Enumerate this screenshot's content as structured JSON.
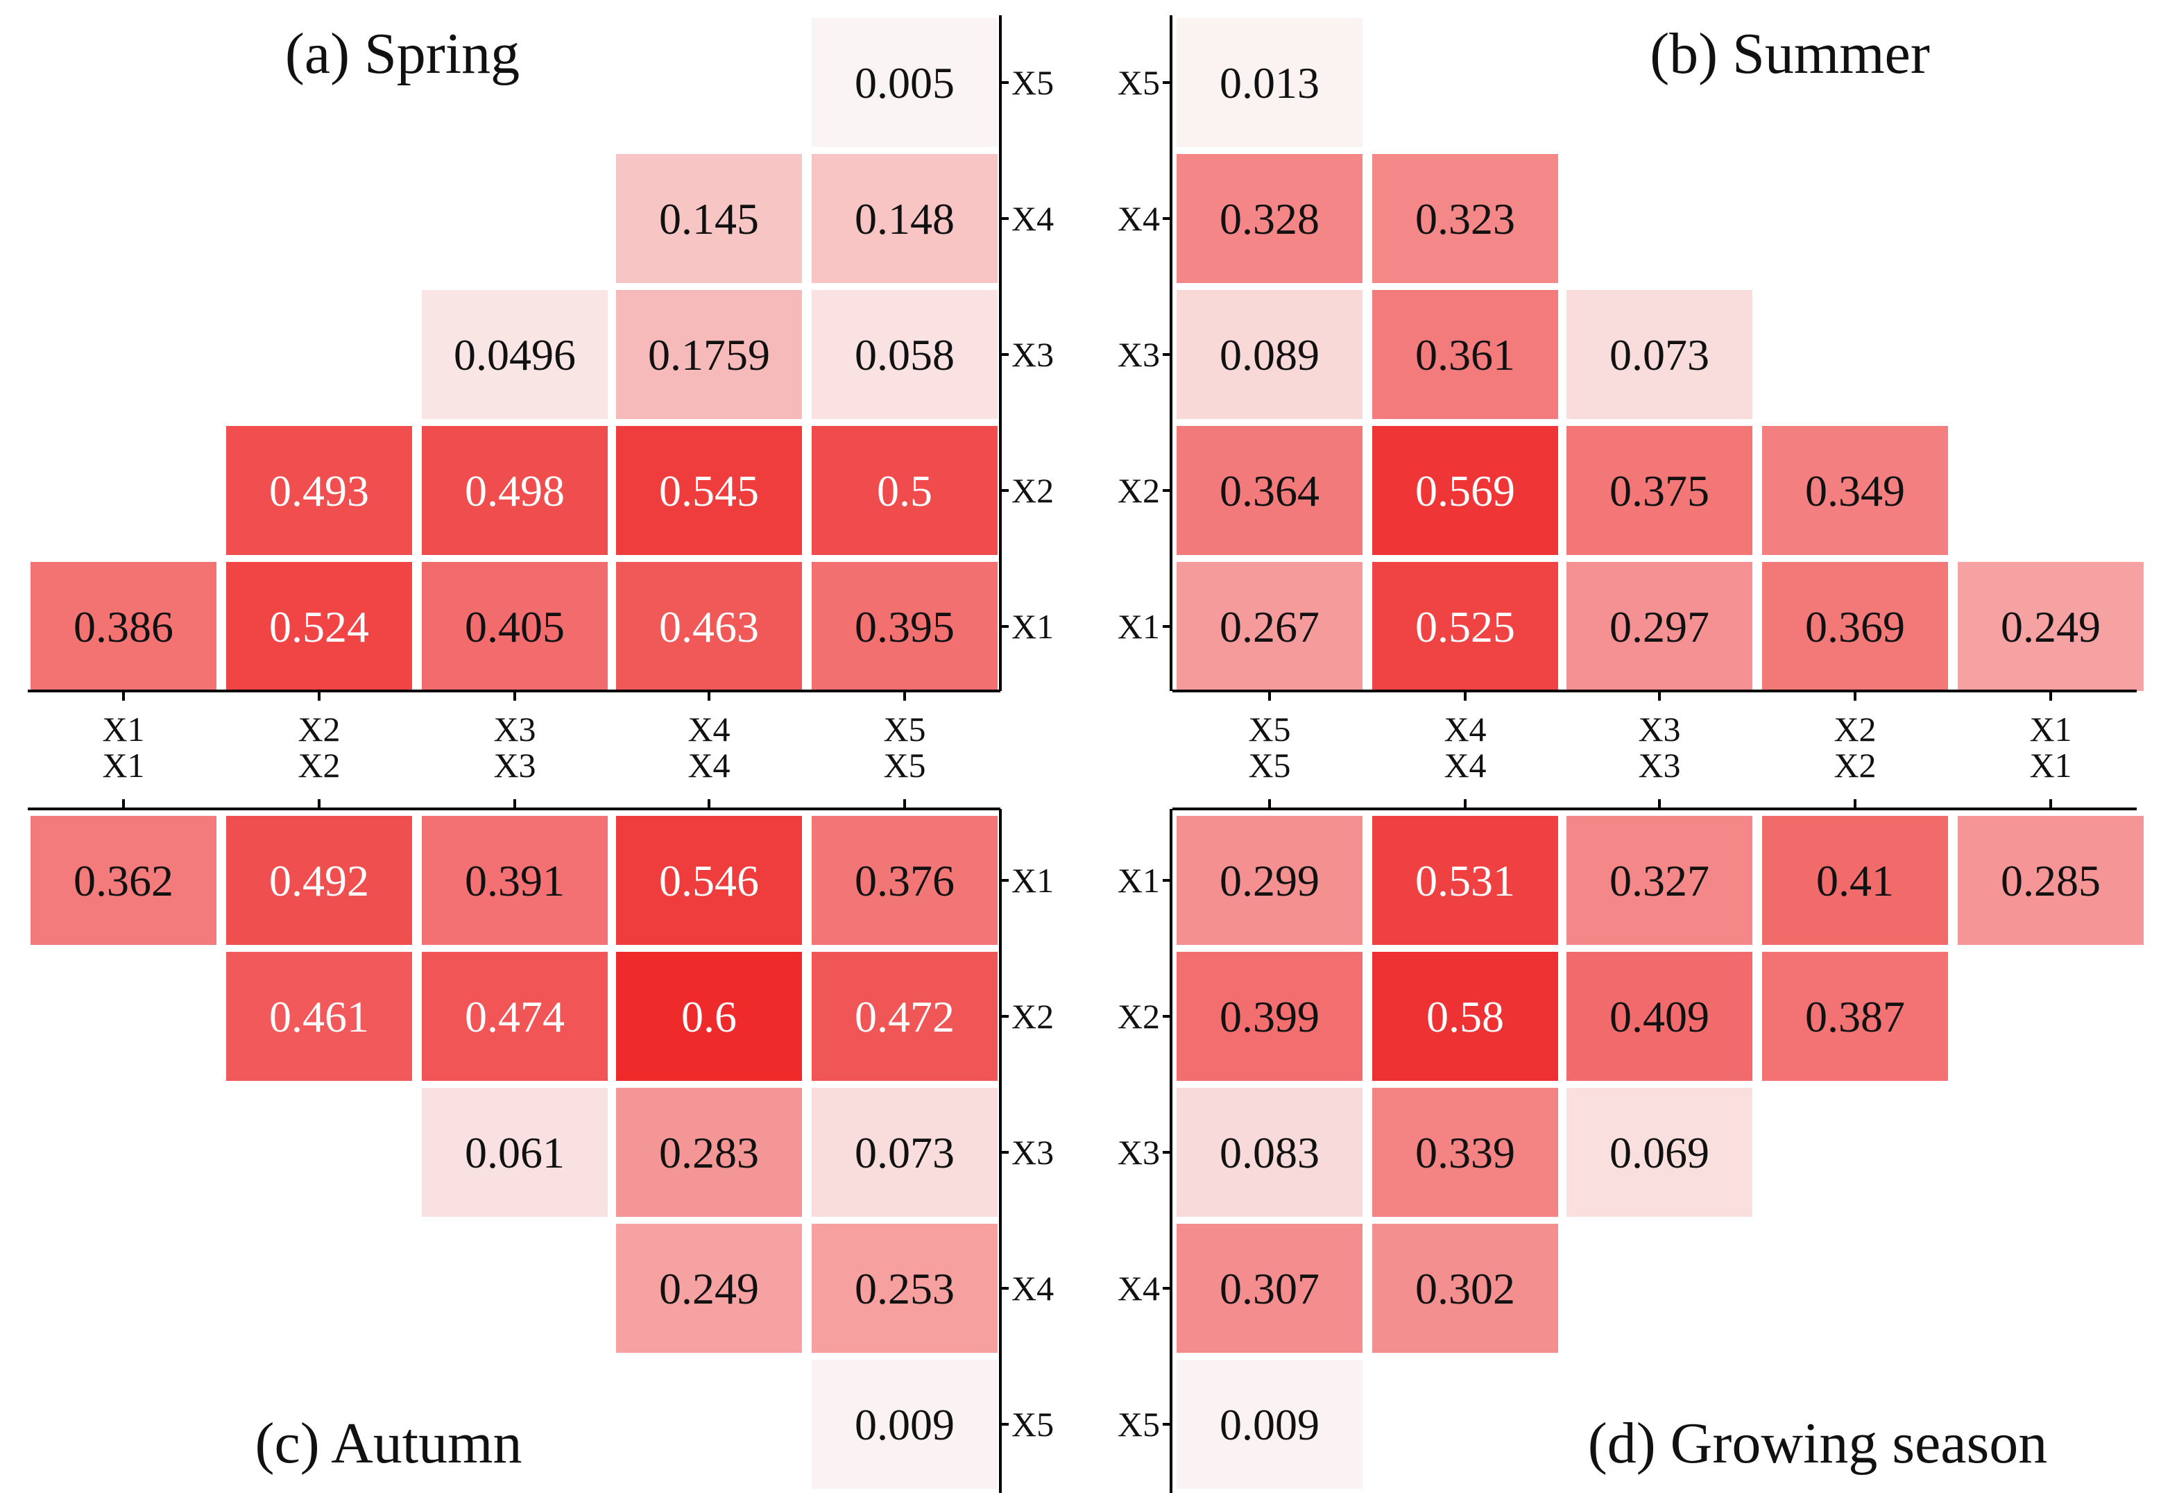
{
  "chart_data": {
    "type": "heatmap",
    "colors": {
      "low": "#fbf6f6",
      "high": "#ee2a2b",
      "text_dark": "#111111",
      "text_light": "#ffffff",
      "axis": "#000000"
    },
    "variables": [
      "X1",
      "X2",
      "X3",
      "X4",
      "X5"
    ],
    "shared_tick_labels": [
      "X1\nX1",
      "X2\nX2",
      "X3\nX3",
      "X4\nX4",
      "X5\nX5"
    ],
    "panels": [
      {
        "id": "a",
        "title": "(a) Spring",
        "cells": [
          {
            "col": "X1",
            "row": "X1",
            "label": "0.386",
            "value": 0.386
          },
          {
            "col": "X2",
            "row": "X1",
            "label": "0.524",
            "value": 0.524
          },
          {
            "col": "X3",
            "row": "X1",
            "label": "0.405",
            "value": 0.405
          },
          {
            "col": "X4",
            "row": "X1",
            "label": "0.463",
            "value": 0.463
          },
          {
            "col": "X5",
            "row": "X1",
            "label": "0.395",
            "value": 0.395
          },
          {
            "col": "X2",
            "row": "X2",
            "label": "0.493",
            "value": 0.493
          },
          {
            "col": "X3",
            "row": "X2",
            "label": "0.498",
            "value": 0.498
          },
          {
            "col": "X4",
            "row": "X2",
            "label": "0.545",
            "value": 0.545
          },
          {
            "col": "X5",
            "row": "X2",
            "label": "0.5",
            "value": 0.5
          },
          {
            "col": "X3",
            "row": "X3",
            "label": "0.0496",
            "value": 0.0496
          },
          {
            "col": "X4",
            "row": "X3",
            "label": "0.1759",
            "value": 0.1759
          },
          {
            "col": "X5",
            "row": "X3",
            "label": "0.058",
            "value": 0.058
          },
          {
            "col": "X4",
            "row": "X4",
            "label": "0.145",
            "value": 0.145
          },
          {
            "col": "X5",
            "row": "X4",
            "label": "0.148",
            "value": 0.148
          },
          {
            "col": "X5",
            "row": "X5",
            "label": "0.005",
            "value": 0.005
          }
        ]
      },
      {
        "id": "b",
        "title": "(b) Summer",
        "cells": [
          {
            "col": "X5",
            "row": "X1",
            "label": "0.267",
            "value": 0.267
          },
          {
            "col": "X4",
            "row": "X1",
            "label": "0.525",
            "value": 0.525
          },
          {
            "col": "X3",
            "row": "X1",
            "label": "0.297",
            "value": 0.297
          },
          {
            "col": "X2",
            "row": "X1",
            "label": "0.369",
            "value": 0.369
          },
          {
            "col": "X1",
            "row": "X1",
            "label": "0.249",
            "value": 0.249
          },
          {
            "col": "X5",
            "row": "X2",
            "label": "0.364",
            "value": 0.364
          },
          {
            "col": "X4",
            "row": "X2",
            "label": "0.569",
            "value": 0.569
          },
          {
            "col": "X3",
            "row": "X2",
            "label": "0.375",
            "value": 0.375
          },
          {
            "col": "X2",
            "row": "X2",
            "label": "0.349",
            "value": 0.349
          },
          {
            "col": "X5",
            "row": "X3",
            "label": "0.089",
            "value": 0.089
          },
          {
            "col": "X4",
            "row": "X3",
            "label": "0.361",
            "value": 0.361
          },
          {
            "col": "X3",
            "row": "X3",
            "label": "0.073",
            "value": 0.073
          },
          {
            "col": "X5",
            "row": "X4",
            "label": "0.328",
            "value": 0.328
          },
          {
            "col": "X4",
            "row": "X4",
            "label": "0.323",
            "value": 0.323
          },
          {
            "col": "X5",
            "row": "X5",
            "label": "0.013",
            "value": 0.013
          }
        ]
      },
      {
        "id": "c",
        "title": "(c) Autumn",
        "cells": [
          {
            "col": "X1",
            "row": "X1",
            "label": "0.362",
            "value": 0.362
          },
          {
            "col": "X2",
            "row": "X1",
            "label": "0.492",
            "value": 0.492
          },
          {
            "col": "X3",
            "row": "X1",
            "label": "0.391",
            "value": 0.391
          },
          {
            "col": "X4",
            "row": "X1",
            "label": "0.546",
            "value": 0.546
          },
          {
            "col": "X5",
            "row": "X1",
            "label": "0.376",
            "value": 0.376
          },
          {
            "col": "X2",
            "row": "X2",
            "label": "0.461",
            "value": 0.461
          },
          {
            "col": "X3",
            "row": "X2",
            "label": "0.474",
            "value": 0.474
          },
          {
            "col": "X4",
            "row": "X2",
            "label": "0.6",
            "value": 0.6
          },
          {
            "col": "X5",
            "row": "X2",
            "label": "0.472",
            "value": 0.472
          },
          {
            "col": "X3",
            "row": "X3",
            "label": "0.061",
            "value": 0.061
          },
          {
            "col": "X4",
            "row": "X3",
            "label": "0.283",
            "value": 0.283
          },
          {
            "col": "X5",
            "row": "X3",
            "label": "0.073",
            "value": 0.073
          },
          {
            "col": "X4",
            "row": "X4",
            "label": "0.249",
            "value": 0.249
          },
          {
            "col": "X5",
            "row": "X4",
            "label": "0.253",
            "value": 0.253
          },
          {
            "col": "X5",
            "row": "X5",
            "label": "0.009",
            "value": 0.009
          }
        ]
      },
      {
        "id": "d",
        "title": "(d) Growing season",
        "cells": [
          {
            "col": "X5",
            "row": "X1",
            "label": "0.299",
            "value": 0.299
          },
          {
            "col": "X4",
            "row": "X1",
            "label": "0.531",
            "value": 0.531
          },
          {
            "col": "X3",
            "row": "X1",
            "label": "0.327",
            "value": 0.327
          },
          {
            "col": "X2",
            "row": "X1",
            "label": "0.41",
            "value": 0.41
          },
          {
            "col": "X1",
            "row": "X1",
            "label": "0.285",
            "value": 0.285
          },
          {
            "col": "X5",
            "row": "X2",
            "label": "0.399",
            "value": 0.399
          },
          {
            "col": "X4",
            "row": "X2",
            "label": "0.58",
            "value": 0.58
          },
          {
            "col": "X3",
            "row": "X2",
            "label": "0.409",
            "value": 0.409
          },
          {
            "col": "X2",
            "row": "X2",
            "label": "0.387",
            "value": 0.387
          },
          {
            "col": "X5",
            "row": "X3",
            "label": "0.083",
            "value": 0.083
          },
          {
            "col": "X4",
            "row": "X3",
            "label": "0.339",
            "value": 0.339
          },
          {
            "col": "X3",
            "row": "X3",
            "label": "0.069",
            "value": 0.069
          },
          {
            "col": "X5",
            "row": "X4",
            "label": "0.307",
            "value": 0.307
          },
          {
            "col": "X4",
            "row": "X4",
            "label": "0.302",
            "value": 0.302
          },
          {
            "col": "X5",
            "row": "X5",
            "label": "0.009",
            "value": 0.009
          }
        ]
      }
    ]
  }
}
